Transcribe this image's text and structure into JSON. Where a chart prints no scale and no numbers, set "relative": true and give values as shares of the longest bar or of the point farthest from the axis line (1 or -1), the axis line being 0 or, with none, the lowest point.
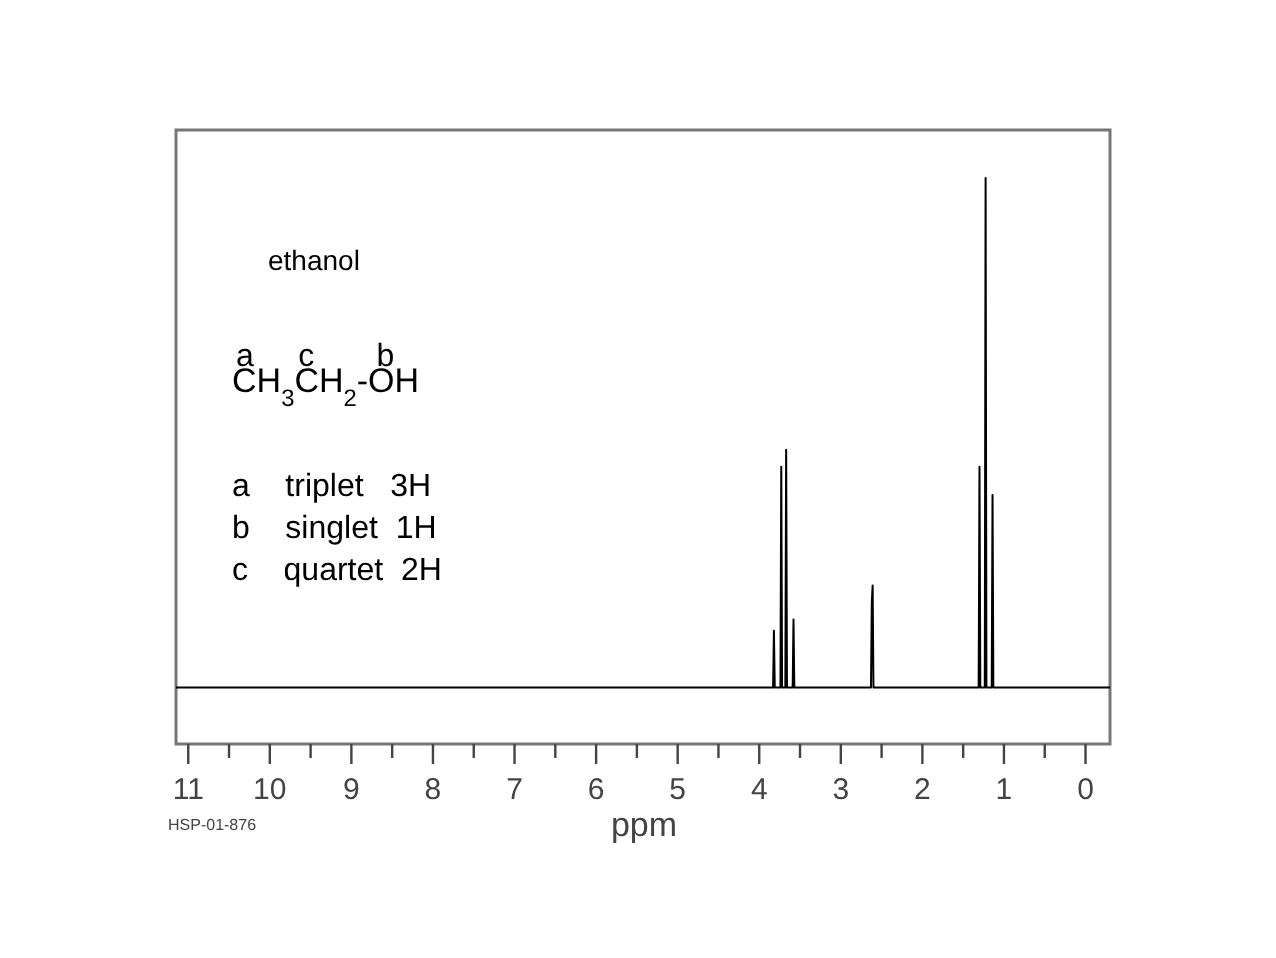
{
  "chart_data": {
    "type": "line",
    "title": "ethanol",
    "xlabel": "ppm",
    "annotations": [
      "a     c       b",
      "CH$_{3}$CH$_{2}$-OH",
      "a    triplet   3H",
      "b    singlet  1H",
      "c    quartet  2H",
      "HSP-01-876"
    ],
    "relative": true,
    "tick_labels": "x",
    "xlim": [
      11.15,
      -0.3
    ],
    "xticks": [
      11,
      {
        "value": 10.5,
        "label": null
      },
      10,
      {
        "value": 9.5,
        "label": null
      },
      9,
      {
        "value": 8.5,
        "label": null
      },
      8,
      {
        "value": 7.5,
        "label": null
      },
      7,
      {
        "value": 6.5,
        "label": null
      },
      6,
      {
        "value": 5.5,
        "label": null
      },
      5,
      {
        "value": 4.5,
        "label": null
      },
      4,
      {
        "value": 3.5,
        "label": null
      },
      3,
      {
        "value": 2.5,
        "label": null
      },
      2,
      {
        "value": 1.5,
        "label": null
      },
      1,
      {
        "value": 0.5,
        "label": null
      },
      0
    ],
    "series": [
      {
        "color": "#000000",
        "x": [
          11.15,
          3.85,
          3.83,
          3.82,
          3.81,
          3.74,
          3.73,
          3.72,
          3.68,
          3.67,
          3.66,
          3.59,
          3.58,
          3.57,
          2.63,
          2.62,
          2.61,
          2.6,
          1.31,
          1.3,
          1.29,
          1.235,
          1.225,
          1.215,
          1.15,
          1.14,
          1.13,
          -0.3
        ],
        "values": [
          0.1,
          0.1,
          0.1,
          0.2,
          0.1,
          0.1,
          0.49,
          0.1,
          0.1,
          0.52,
          0.1,
          0.1,
          0.22,
          0.1,
          0.1,
          0.25,
          0.28,
          0.1,
          0.1,
          0.49,
          0.1,
          0.1,
          1,
          0.1,
          0.1,
          0.44,
          0.1,
          0.1
        ]
      }
    ]
  }
}
